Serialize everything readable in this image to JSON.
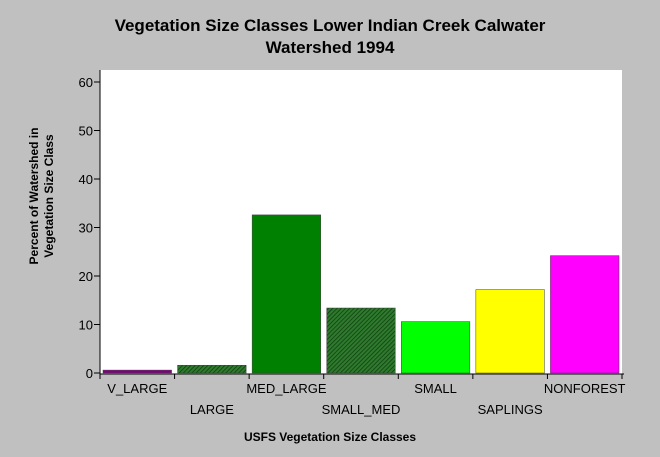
{
  "chart_data": {
    "type": "bar",
    "title_lines": [
      "Vegetation Size Classes Lower Indian Creek Calwater",
      "Watershed 1994"
    ],
    "xlabel": "USFS Vegetation Size Classes",
    "ylabel_lines": [
      "Percent of Watershed in",
      "Vegetation Size Class"
    ],
    "ylim": [
      0,
      60
    ],
    "yticks": [
      "0",
      "10",
      "20",
      "30",
      "40",
      "50",
      "60"
    ],
    "grid": false,
    "categories": [
      "V_LARGE",
      "LARGE",
      "MED_LARGE",
      "SMALL_MED",
      "SMALL",
      "SAPLINGS",
      "NONFOREST"
    ],
    "values": [
      0.6,
      1.6,
      32.6,
      13.4,
      10.6,
      17.2,
      24.2
    ],
    "colors": [
      "#800080",
      "#006400",
      "#008000",
      "#008000",
      "#00ff00",
      "#ffff00",
      "#ff00ff"
    ],
    "patterns": [
      "none",
      "hatch",
      "none",
      "hatch",
      "none",
      "none",
      "none"
    ],
    "background": "#c0c0c0",
    "plot_background": "#ffffff"
  }
}
